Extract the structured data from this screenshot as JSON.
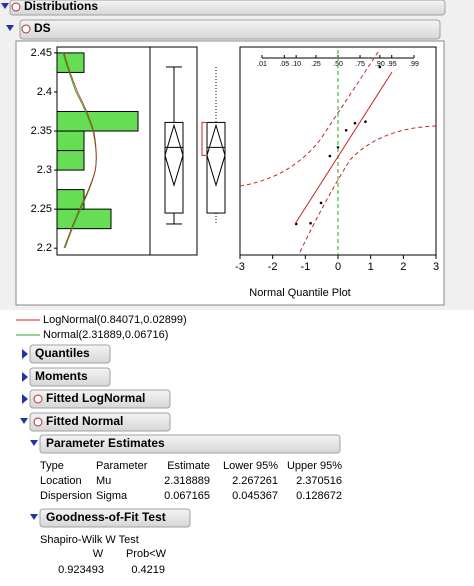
{
  "outline": {
    "title": "Distributions",
    "variable": "DS"
  },
  "chart_data": {
    "type": "distribution",
    "histogram": {
      "bins": [
        2.225,
        2.25,
        2.275,
        2.3,
        2.325,
        2.35,
        2.375,
        2.4,
        2.425,
        2.45
      ],
      "counts": [
        2,
        1,
        0,
        1,
        1,
        3,
        0,
        0,
        1
      ],
      "color": "#66dd55"
    },
    "ylim": [
      2.19,
      2.455
    ],
    "yticks": [
      2.2,
      2.25,
      2.3,
      2.35,
      2.4,
      2.45
    ],
    "box_plot": {
      "min": 2.231,
      "q1": 2.245,
      "median": 2.329,
      "q3": 2.361,
      "max": 2.432,
      "mean": 2.31889
    },
    "normal_quantile_plot": {
      "title": "Normal Quantile Plot",
      "x": [
        -1.28,
        -0.84,
        -0.52,
        -0.25,
        0,
        0.25,
        0.52,
        0.84,
        1.28
      ],
      "y": [
        2.231,
        2.232,
        2.258,
        2.318,
        2.329,
        2.351,
        2.36,
        2.362,
        2.432
      ],
      "xlim": [
        -3,
        3
      ],
      "xticks": [
        -3,
        -2,
        -1,
        0,
        1,
        2,
        3
      ],
      "prob_ticks": [
        {
          "value": 0.01,
          "label": ".01"
        },
        {
          "value": 0.05,
          "label": ".05"
        },
        {
          "value": 0.1,
          "label": ".10"
        },
        {
          "value": 0.25,
          "label": ".25"
        },
        {
          "value": 0.5,
          "label": ".50"
        },
        {
          "value": 0.75,
          "label": ".75"
        },
        {
          "value": 0.9,
          "label": ".90"
        },
        {
          "value": 0.95,
          "label": ".95"
        },
        {
          "value": 0.99,
          "label": ".99"
        }
      ]
    },
    "legend": [
      {
        "name": "LogNormal(0.84071,0.02899)",
        "color": "#cc2222"
      },
      {
        "name": "Normal(2.31889,0.06716)",
        "color": "#22aa22"
      }
    ]
  },
  "sections": [
    "Quantiles",
    "Moments",
    "Fitted LogNormal",
    "Fitted Normal"
  ],
  "parameter_estimates": {
    "title": "Parameter Estimates",
    "header": [
      "Type",
      "Parameter",
      "Estimate",
      "Lower 95%",
      "Upper 95%"
    ],
    "rows": [
      [
        "Location",
        "Mu",
        2.318889,
        2.267261,
        2.370516
      ],
      [
        "Dispersion",
        "Sigma",
        0.067165,
        0.045367,
        0.128672
      ]
    ]
  },
  "goodness_of_fit": {
    "title": "Goodness-of-Fit Test",
    "test": "Shapiro-Wilk W Test",
    "header": [
      "W",
      "Prob<W"
    ],
    "row": [
      0.923493,
      0.4219
    ]
  }
}
